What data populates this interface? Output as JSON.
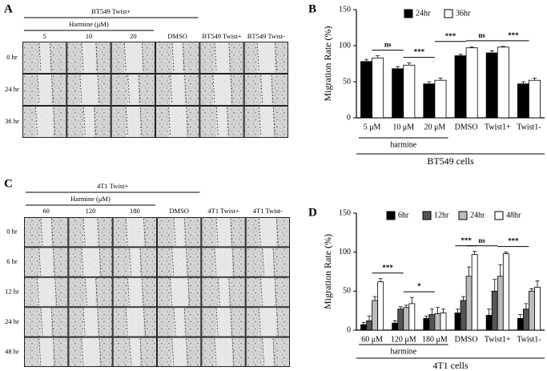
{
  "panels": {
    "a": {
      "label": "A",
      "group": {
        "label": "BT549 Twist+",
        "columns": [
          "5",
          "10",
          "20",
          "DMSO"
        ]
      },
      "subgroup": {
        "label": "Harmine (μM)",
        "columns": [
          "5",
          "10",
          "20"
        ]
      },
      "columns": [
        "5",
        "10",
        "20",
        "DMSO",
        "BT549 Twist+",
        "BT549 Twist-"
      ],
      "rows": [
        "0 hr",
        "24 hr",
        "36 hr"
      ]
    },
    "c": {
      "label": "C",
      "group": {
        "label": "4T1 Twist+",
        "columns": [
          "60",
          "120",
          "180",
          "DMSO"
        ]
      },
      "subgroup": {
        "label": "Harmine (μM)",
        "columns": [
          "60",
          "120",
          "180"
        ]
      },
      "columns": [
        "60",
        "120",
        "180",
        "DMSO",
        "4T1 Twist+",
        "4T1 Twist-"
      ],
      "rows": [
        "0 hr",
        "6 hr",
        "12 hr",
        "24 hr",
        "48 hr"
      ]
    }
  },
  "chart_data": [
    {
      "type": "bar",
      "label": "B",
      "ylabel": "Migration Rate (%)",
      "categories": [
        "5 μM",
        "10 μM",
        "20 μM",
        "DMSO",
        "Twist1+",
        "Twist1-"
      ],
      "series": [
        {
          "name": "24hr",
          "color": "#000000",
          "values": [
            78,
            68,
            47,
            86,
            90,
            47
          ],
          "errors": [
            3,
            3,
            3,
            2,
            3,
            3
          ]
        },
        {
          "name": "36hr",
          "color": "#ffffff",
          "values": [
            83,
            73,
            52,
            97,
            98,
            52
          ],
          "errors": [
            3,
            3,
            3,
            1,
            1,
            3
          ]
        }
      ],
      "ylim": [
        0,
        150
      ],
      "yticks": [
        0,
        50,
        100,
        150
      ],
      "group": {
        "label": "harmine",
        "categories": [
          "5 μM",
          "10 μM",
          "20 μM"
        ]
      },
      "xlabel": "BT549 cells",
      "annotations": [
        {
          "text": "ns",
          "between": [
            "5 μM",
            "10 μM"
          ]
        },
        {
          "text": "***",
          "between": [
            "10 μM",
            "20 μM"
          ]
        },
        {
          "text": "***",
          "between": [
            "20 μM",
            "DMSO"
          ]
        },
        {
          "text": "ns",
          "between": [
            "DMSO",
            "Twist1+"
          ]
        },
        {
          "text": "***",
          "between": [
            "Twist1+",
            "Twist1-"
          ]
        }
      ]
    },
    {
      "type": "bar",
      "label": "D",
      "ylabel": "Migration Rate (%)",
      "categories": [
        "60 μM",
        "120 μM",
        "180 μM",
        "DMSO",
        "Twist1+",
        "Twist1-"
      ],
      "series": [
        {
          "name": "6hr",
          "color": "#000000",
          "values": [
            7,
            9,
            15,
            22,
            19,
            15
          ],
          "errors": [
            3,
            3,
            3,
            5,
            8,
            5
          ]
        },
        {
          "name": "12hr",
          "color": "#555555",
          "values": [
            12,
            27,
            20,
            38,
            50,
            27
          ],
          "errors": [
            6,
            3,
            7,
            5,
            15,
            7
          ]
        },
        {
          "name": "24hr",
          "color": "#bbbbbb",
          "values": [
            38,
            29,
            21,
            69,
            69,
            50
          ],
          "errors": [
            5,
            3,
            8,
            12,
            15,
            3
          ]
        },
        {
          "name": "48hr",
          "color": "#ffffff",
          "values": [
            62,
            34,
            22,
            97,
            98,
            55
          ],
          "errors": [
            4,
            8,
            5,
            4,
            2,
            8
          ]
        }
      ],
      "ylim": [
        0,
        150
      ],
      "yticks": [
        0,
        50,
        100,
        150
      ],
      "group": {
        "label": "harmine",
        "categories": [
          "60 μM",
          "120 μM",
          "180 μM"
        ]
      },
      "xlabel": "4T1 cells",
      "annotations": [
        {
          "text": "***",
          "between": [
            "60 μM",
            "120 μM"
          ]
        },
        {
          "text": "*",
          "between": [
            "120 μM",
            "180 μM"
          ]
        },
        {
          "text": "***",
          "between": [
            "DMSO",
            "DMSO"
          ]
        },
        {
          "text": "ns",
          "between": [
            "DMSO",
            "Twist1+"
          ]
        },
        {
          "text": "***",
          "between": [
            "Twist1+",
            "Twist1-"
          ]
        }
      ]
    }
  ]
}
